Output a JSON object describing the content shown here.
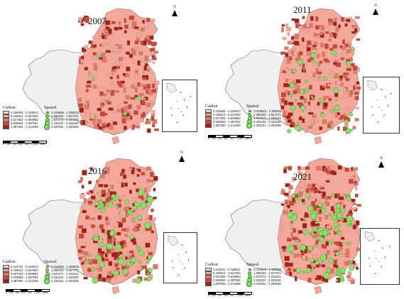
{
  "colors": {
    "land": "#f0f0f0",
    "red_light": "#f4a89a",
    "red_mid": "#e47766",
    "red_dark": "#c9483a",
    "red_deep": "#a32018",
    "green": "#86e26a",
    "outline": "#6b6b6b"
  },
  "north_label": "N",
  "panels": [
    {
      "year": "2007",
      "legend": {
        "carbon_title": "Carbon",
        "spatial_title": "Spawel",
        "carbon_classes": [
          "0.156636 - 0.428813",
          "0.428814 - 0.627502",
          "0.627503 - 0.929862",
          "0.929863 - 1.387061",
          "1.387062 - 2.214288"
        ],
        "spatial_classes": [
          "0.334646 - 1.358332",
          "1.358333 - 1.947371",
          "1.947372 - 2.334101",
          "2.334102 - 3.325180",
          "3.325181 - 4.262539"
        ]
      },
      "scale_ticks": [
        "0",
        "150",
        "300",
        "600",
        "900",
        "1,200"
      ],
      "scale_unit": "Miles"
    },
    {
      "year": "2011",
      "legend": {
        "carbon_title": "Carbon",
        "spatial_title": "Spawel",
        "carbon_classes": [
          "0.215665 - 0.428813",
          "0.428814 - 0.627502",
          "0.627503 - 0.929862",
          "0.929863 - 1.387061",
          "1.387062 - 2.214288"
        ],
        "spatial_classes": [
          "0.334646 - 1.358332",
          "1.358333 - 1.947371",
          "1.947372 - 2.334101",
          "2.334102 - 3.325180",
          "3.325181 - 4.262539"
        ]
      },
      "scale_ticks": [
        "0",
        "150",
        "300",
        "600",
        "900",
        "1,200"
      ],
      "scale_unit": "Miles"
    },
    {
      "year": "2016",
      "legend": {
        "carbon_title": "Carbon",
        "spatial_title": "Spawel",
        "carbon_classes": [
          "0.144731 - 0.428813",
          "0.428814 - 0.627502",
          "0.627503 - 0.929862",
          "0.929863 - 1.387061",
          "1.387062 - 2.214288"
        ],
        "spatial_classes": [
          "0.334646 - 1.358332",
          "1.358333 - 1.947371",
          "1.947372 - 2.334101",
          "2.334102 - 3.325180",
          "3.325181 - 4.262539"
        ]
      },
      "scale_ticks": [
        "0",
        "150",
        "300",
        "600",
        "900",
        "1,200"
      ],
      "scale_unit": "Miles"
    },
    {
      "year": "2021",
      "legend": {
        "carbon_title": "Carbon",
        "spatial_title": "Spawel",
        "carbon_classes": [
          "0.115161 - 0.428813",
          "0.428814 - 0.627502",
          "0.627503 - 0.929862",
          "0.929863 - 1.387061",
          "1.387062 - 2.214288"
        ],
        "spatial_classes": [
          "0.334646 - 1.358332",
          "1.358333 - 1.947371",
          "1.947372 - 2.334101",
          "2.334102 - 3.325180",
          "3.325181 - 4.262539"
        ]
      },
      "scale_ticks": [
        "0",
        "150",
        "300",
        "600",
        "900",
        "1,200"
      ],
      "scale_unit": "Miles"
    }
  ]
}
